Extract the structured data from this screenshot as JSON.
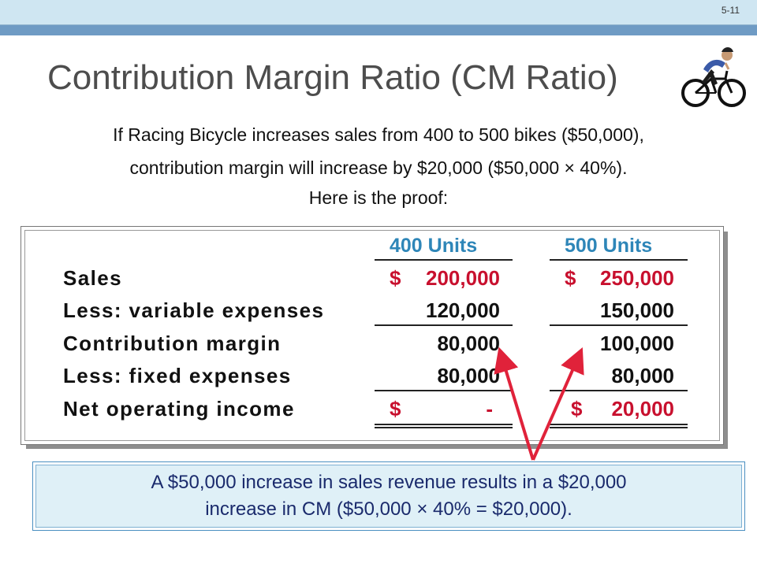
{
  "slide_number": "5-11",
  "title": "Contribution Margin Ratio (CM Ratio)",
  "intro": [
    "If Racing Bicycle increases sales from 400 to 500 bikes ($50,000),",
    "contribution margin will increase by $20,000 ($50,000 × 40%).",
    "Here is the proof:"
  ],
  "table": {
    "headers": [
      "400 Units",
      "500 Units"
    ],
    "rows": [
      {
        "label": "Sales",
        "v400": "200,000",
        "v500": "250,000",
        "cur400": "$",
        "cur500": "$"
      },
      {
        "label": "Less: variable expenses",
        "v400": "120,000",
        "v500": "150,000"
      },
      {
        "label": "Contribution margin",
        "v400": "80,000",
        "v500": "100,000"
      },
      {
        "label": "Less: fixed expenses",
        "v400": "80,000",
        "v500": "80,000"
      },
      {
        "label": "Net operating income",
        "v400": "-",
        "v500": "20,000",
        "cur400": "$",
        "cur500": "$"
      }
    ]
  },
  "note": [
    "A $50,000 increase in sales revenue results in a $20,000",
    "increase in CM ($50,000 × 40% = $20,000)."
  ],
  "colors": {
    "header": "#2e86b8",
    "currency_red": "#c8102e",
    "arrow_red": "#e0223a",
    "note_text": "#1a2a6c"
  },
  "icons": [
    "cyclist-icon"
  ]
}
